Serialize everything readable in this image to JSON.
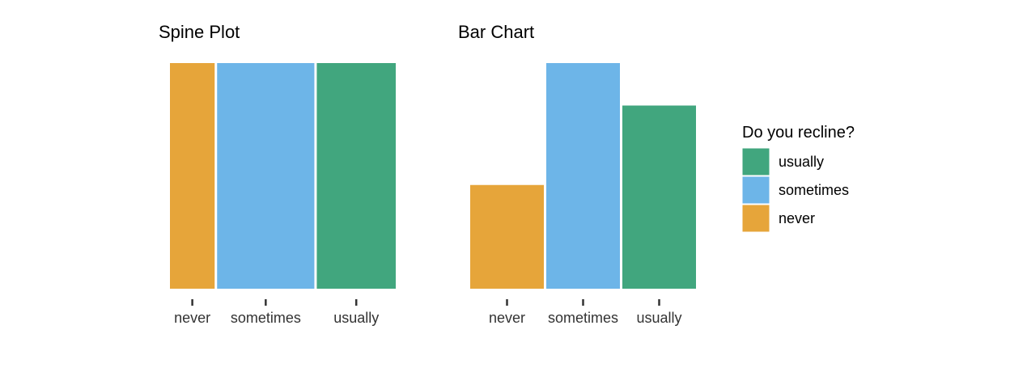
{
  "chart_data": [
    {
      "type": "bar",
      "variant": "spine",
      "title": "Spine Plot",
      "xlabel": "",
      "ylabel": "",
      "categories": [
        "never",
        "sometimes",
        "usually"
      ],
      "values": [
        171,
        372,
        302
      ],
      "ylim": [
        0,
        1
      ],
      "grid": false
    },
    {
      "type": "bar",
      "title": "Bar Chart",
      "xlabel": "",
      "ylabel": "",
      "categories": [
        "never",
        "sometimes",
        "usually"
      ],
      "values": [
        171,
        372,
        302
      ],
      "ylim": [
        0,
        372
      ],
      "grid": false
    }
  ],
  "legend": {
    "title": "Do you recline?",
    "position": "right",
    "items": [
      {
        "label": "usually",
        "color": "#41A67E"
      },
      {
        "label": "sometimes",
        "color": "#6DB5E8"
      },
      {
        "label": "never",
        "color": "#E6A53A"
      }
    ]
  },
  "colors": {
    "never": "#E6A53A",
    "sometimes": "#6DB5E8",
    "usually": "#41A67E"
  }
}
